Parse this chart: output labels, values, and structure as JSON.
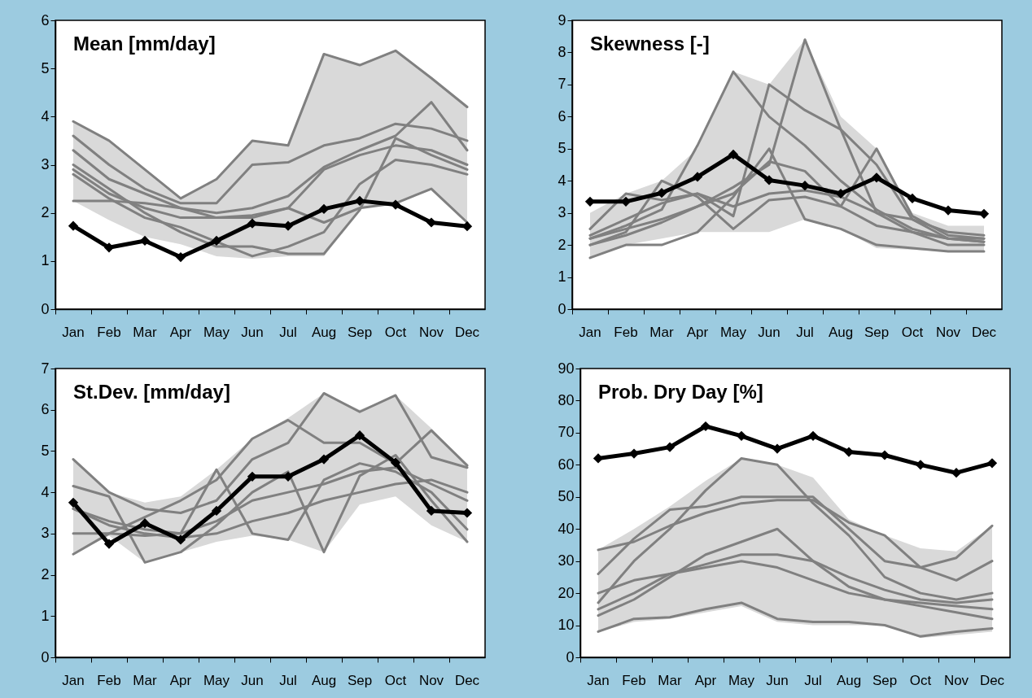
{
  "chart_data": [
    {
      "type": "line",
      "title": "Mean [mm/day]",
      "categories": [
        "Jan",
        "Feb",
        "Mar",
        "Apr",
        "May",
        "Jun",
        "Jul",
        "Aug",
        "Sep",
        "Oct",
        "Nov",
        "Dec"
      ],
      "ylim": [
        0,
        6
      ],
      "yticks": [
        0,
        1,
        2,
        3,
        4,
        5,
        6
      ],
      "series": [
        {
          "color": "#808080",
          "marker": "none",
          "values": [
            2.9,
            2.4,
            2.1,
            1.9,
            1.9,
            1.9,
            2.1,
            2.9,
            3.2,
            3.4,
            3.3,
            3.0
          ],
          "lower": [
            2.25,
            1.85,
            1.5,
            1.35,
            1.1,
            1.05,
            1.1,
            1.1,
            2.1,
            2.2,
            2.5,
            1.8
          ],
          "upper": [
            3.9,
            3.5,
            2.9,
            2.3,
            2.7,
            3.5,
            3.4,
            5.3,
            5.07,
            5.37,
            4.8,
            4.2
          ]
        },
        {
          "color": "#808080",
          "marker": "none",
          "values": [
            3.9,
            3.5,
            2.9,
            2.3,
            2.7,
            3.5,
            3.4,
            5.3,
            5.07,
            5.37,
            4.8,
            4.2
          ]
        },
        {
          "color": "#808080",
          "marker": "none",
          "values": [
            3.6,
            3.0,
            2.5,
            2.2,
            2.2,
            3.0,
            3.05,
            3.4,
            3.55,
            3.85,
            3.75,
            3.5
          ]
        },
        {
          "color": "#808080",
          "marker": "none",
          "values": [
            3.3,
            2.7,
            2.4,
            2.1,
            2.0,
            2.1,
            2.35,
            2.95,
            3.3,
            3.6,
            4.3,
            3.3
          ]
        },
        {
          "color": "#808080",
          "marker": "none",
          "values": [
            2.25,
            2.25,
            2.2,
            2.1,
            1.9,
            1.95,
            2.1,
            1.8,
            2.1,
            2.2,
            2.5,
            1.8
          ]
        },
        {
          "color": "#808080",
          "marker": "none",
          "values": [
            3.0,
            2.5,
            2.0,
            1.6,
            1.3,
            1.3,
            1.15,
            1.15,
            2.06,
            3.55,
            3.2,
            2.9
          ]
        },
        {
          "color": "#808080",
          "marker": "none",
          "values": [
            2.8,
            2.3,
            1.9,
            1.7,
            1.4,
            1.1,
            1.3,
            1.6,
            2.6,
            3.1,
            3.0,
            2.8
          ]
        },
        {
          "color": "#000000",
          "marker": "diamond",
          "values": [
            1.73,
            1.28,
            1.42,
            1.08,
            1.42,
            1.78,
            1.73,
            2.08,
            2.25,
            2.17,
            1.8,
            1.72
          ]
        }
      ]
    },
    {
      "type": "line",
      "title": "Skewness [-]",
      "categories": [
        "Jan",
        "Feb",
        "Mar",
        "Apr",
        "May",
        "Jun",
        "Jul",
        "Aug",
        "Sep",
        "Oct",
        "Nov",
        "Dec"
      ],
      "ylim": [
        0,
        9
      ],
      "yticks": [
        0,
        1,
        2,
        3,
        4,
        5,
        6,
        7,
        8,
        9
      ],
      "series": [
        {
          "color": "#808080",
          "marker": "none",
          "values": [
            2.2,
            2.5,
            2.8,
            3.2,
            3.6,
            4.6,
            4.3,
            3.2,
            2.6,
            2.4,
            2.2,
            2.2
          ],
          "lower": [
            1.6,
            2.0,
            2.2,
            2.4,
            2.4,
            2.4,
            2.8,
            2.5,
            1.9,
            1.85,
            1.8,
            1.8
          ],
          "upper": [
            3.0,
            3.6,
            4.0,
            5.0,
            7.4,
            7.0,
            8.4,
            6.0,
            5.0,
            3.0,
            2.6,
            2.6
          ]
        },
        {
          "color": "#808080",
          "marker": "none",
          "values": [
            2.0,
            2.3,
            2.7,
            3.2,
            3.8,
            4.5,
            8.4,
            5.6,
            3.0,
            2.4,
            2.0,
            2.0
          ]
        },
        {
          "color": "#808080",
          "marker": "none",
          "values": [
            2.2,
            2.6,
            3.1,
            5.1,
            7.4,
            6.0,
            5.1,
            4.0,
            3.1,
            2.5,
            2.2,
            2.1
          ]
        },
        {
          "color": "#808080",
          "marker": "none",
          "values": [
            2.3,
            2.8,
            3.3,
            3.6,
            2.9,
            7.0,
            6.2,
            5.6,
            4.5,
            2.8,
            2.2,
            2.1
          ]
        },
        {
          "color": "#808080",
          "marker": "none",
          "values": [
            2.0,
            2.4,
            4.0,
            3.5,
            2.5,
            3.4,
            3.5,
            3.2,
            5.0,
            2.9,
            2.3,
            2.2
          ]
        },
        {
          "color": "#808080",
          "marker": "none",
          "values": [
            1.6,
            2.0,
            2.0,
            2.4,
            3.5,
            5.0,
            2.8,
            2.5,
            2.0,
            1.9,
            1.8,
            1.8
          ]
        },
        {
          "color": "#808080",
          "marker": "none",
          "values": [
            2.5,
            3.6,
            3.4,
            3.6,
            3.2,
            3.6,
            3.7,
            3.5,
            3.0,
            2.8,
            2.4,
            2.3
          ]
        },
        {
          "color": "#000000",
          "marker": "diamond",
          "values": [
            3.35,
            3.35,
            3.62,
            4.12,
            4.82,
            4.02,
            3.85,
            3.6,
            4.1,
            3.45,
            3.08,
            2.97
          ]
        }
      ]
    },
    {
      "type": "line",
      "title": "St.Dev. [mm/day]",
      "categories": [
        "Jan",
        "Feb",
        "Mar",
        "Apr",
        "May",
        "Jun",
        "Jul",
        "Aug",
        "Sep",
        "Oct",
        "Nov",
        "Dec"
      ],
      "ylim": [
        0,
        7
      ],
      "yticks": [
        0,
        1,
        2,
        3,
        4,
        5,
        6,
        7
      ],
      "series": [
        {
          "color": "#808080",
          "marker": "none",
          "values": [
            3.6,
            3.3,
            3.1,
            3.0,
            3.3,
            3.8,
            4.0,
            4.2,
            4.5,
            4.6,
            4.2,
            3.8
          ],
          "lower": [
            2.5,
            2.95,
            2.3,
            2.55,
            2.8,
            2.95,
            2.85,
            2.55,
            3.7,
            3.9,
            3.2,
            2.8
          ],
          "upper": [
            4.8,
            4.0,
            3.75,
            3.9,
            4.55,
            5.3,
            5.8,
            6.4,
            6.0,
            6.35,
            5.55,
            4.65
          ]
        },
        {
          "color": "#808080",
          "marker": "none",
          "values": [
            4.8,
            4.0,
            3.6,
            3.5,
            3.8,
            4.8,
            5.2,
            6.4,
            5.95,
            6.35,
            4.85,
            4.6
          ]
        },
        {
          "color": "#808080",
          "marker": "none",
          "values": [
            2.5,
            3.0,
            3.4,
            3.8,
            4.3,
            5.3,
            5.75,
            5.2,
            5.2,
            4.7,
            5.5,
            4.65
          ]
        },
        {
          "color": "#808080",
          "marker": "none",
          "values": [
            3.0,
            3.0,
            2.95,
            3.0,
            4.55,
            3.0,
            2.85,
            4.3,
            4.7,
            4.5,
            4.0,
            3.1
          ]
        },
        {
          "color": "#808080",
          "marker": "none",
          "values": [
            4.15,
            3.9,
            2.3,
            2.55,
            3.2,
            4.0,
            4.5,
            2.55,
            4.4,
            4.9,
            3.8,
            2.8
          ]
        },
        {
          "color": "#808080",
          "marker": "none",
          "values": [
            3.6,
            3.2,
            3.0,
            2.9,
            3.0,
            3.3,
            3.5,
            3.8,
            4.0,
            4.2,
            4.3,
            4.0
          ]
        },
        {
          "color": "#000000",
          "marker": "diamond",
          "values": [
            3.75,
            2.75,
            3.25,
            2.85,
            3.55,
            4.38,
            4.38,
            4.8,
            5.38,
            4.72,
            3.55,
            3.5
          ]
        }
      ]
    },
    {
      "type": "line",
      "title": "Prob. Dry Day [%]",
      "categories": [
        "Jan",
        "Feb",
        "Mar",
        "Apr",
        "May",
        "Jun",
        "Jul",
        "Aug",
        "Sep",
        "Oct",
        "Nov",
        "Dec"
      ],
      "ylim": [
        0,
        90
      ],
      "yticks": [
        0,
        10,
        20,
        30,
        40,
        50,
        60,
        70,
        80,
        90
      ],
      "series": [
        {
          "color": "#808080",
          "marker": "none",
          "values": [
            15,
            20,
            26,
            29,
            32,
            32,
            30,
            25,
            21,
            18,
            17,
            18
          ],
          "lower": [
            8,
            11,
            12,
            14,
            16,
            11,
            10,
            10,
            10,
            6,
            7,
            8
          ],
          "upper": [
            33.5,
            40,
            47,
            55,
            62,
            60,
            56,
            43,
            38,
            34,
            33,
            41
          ]
        },
        {
          "color": "#808080",
          "marker": "none",
          "values": [
            17,
            30,
            40,
            52,
            62,
            60,
            48,
            38,
            25,
            20,
            18,
            20
          ]
        },
        {
          "color": "#808080",
          "marker": "none",
          "values": [
            26,
            37,
            46,
            47,
            50,
            50,
            50,
            40,
            30,
            28,
            31,
            41
          ]
        },
        {
          "color": "#808080",
          "marker": "none",
          "values": [
            33.5,
            36,
            41,
            45,
            48,
            49,
            49,
            42,
            38,
            28,
            24,
            30
          ]
        },
        {
          "color": "#808080",
          "marker": "none",
          "values": [
            13,
            18,
            25,
            32,
            36,
            40,
            30,
            22,
            18,
            16,
            14,
            12
          ]
        },
        {
          "color": "#808080",
          "marker": "none",
          "values": [
            8,
            12,
            12.5,
            15,
            17,
            12,
            11,
            11,
            10,
            6.5,
            8,
            9
          ]
        },
        {
          "color": "#808080",
          "marker": "none",
          "values": [
            20,
            24,
            26,
            28,
            30,
            28,
            24,
            20,
            18,
            17,
            16,
            15
          ]
        },
        {
          "color": "#000000",
          "marker": "diamond",
          "values": [
            62,
            63.5,
            65.5,
            72,
            69,
            65,
            69,
            64,
            63,
            60,
            57.5,
            60.5
          ]
        }
      ]
    }
  ]
}
